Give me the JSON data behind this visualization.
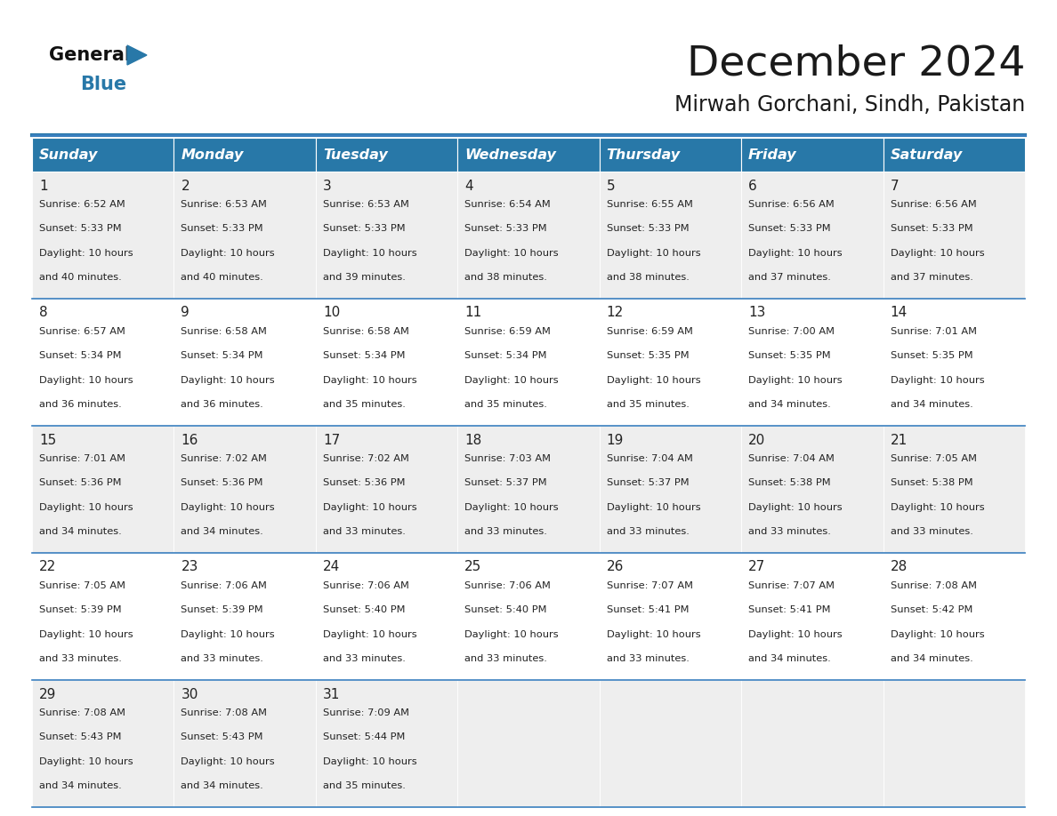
{
  "title": "December 2024",
  "subtitle": "Mirwah Gorchani, Sindh, Pakistan",
  "days_of_week": [
    "Sunday",
    "Monday",
    "Tuesday",
    "Wednesday",
    "Thursday",
    "Friday",
    "Saturday"
  ],
  "header_bg": "#2878a8",
  "header_text_color": "#FFFFFF",
  "row_bg_odd": "#EEEEEE",
  "row_bg_even": "#FFFFFF",
  "cell_border_color": "#3a7fbf",
  "text_color": "#222222",
  "logo_blue_color": "#2878a8",
  "weeks": [
    [
      {
        "day": 1,
        "sunrise": "6:52 AM",
        "sunset": "5:33 PM",
        "daylight": "10 hours and 40 minutes."
      },
      {
        "day": 2,
        "sunrise": "6:53 AM",
        "sunset": "5:33 PM",
        "daylight": "10 hours and 40 minutes."
      },
      {
        "day": 3,
        "sunrise": "6:53 AM",
        "sunset": "5:33 PM",
        "daylight": "10 hours and 39 minutes."
      },
      {
        "day": 4,
        "sunrise": "6:54 AM",
        "sunset": "5:33 PM",
        "daylight": "10 hours and 38 minutes."
      },
      {
        "day": 5,
        "sunrise": "6:55 AM",
        "sunset": "5:33 PM",
        "daylight": "10 hours and 38 minutes."
      },
      {
        "day": 6,
        "sunrise": "6:56 AM",
        "sunset": "5:33 PM",
        "daylight": "10 hours and 37 minutes."
      },
      {
        "day": 7,
        "sunrise": "6:56 AM",
        "sunset": "5:33 PM",
        "daylight": "10 hours and 37 minutes."
      }
    ],
    [
      {
        "day": 8,
        "sunrise": "6:57 AM",
        "sunset": "5:34 PM",
        "daylight": "10 hours and 36 minutes."
      },
      {
        "day": 9,
        "sunrise": "6:58 AM",
        "sunset": "5:34 PM",
        "daylight": "10 hours and 36 minutes."
      },
      {
        "day": 10,
        "sunrise": "6:58 AM",
        "sunset": "5:34 PM",
        "daylight": "10 hours and 35 minutes."
      },
      {
        "day": 11,
        "sunrise": "6:59 AM",
        "sunset": "5:34 PM",
        "daylight": "10 hours and 35 minutes."
      },
      {
        "day": 12,
        "sunrise": "6:59 AM",
        "sunset": "5:35 PM",
        "daylight": "10 hours and 35 minutes."
      },
      {
        "day": 13,
        "sunrise": "7:00 AM",
        "sunset": "5:35 PM",
        "daylight": "10 hours and 34 minutes."
      },
      {
        "day": 14,
        "sunrise": "7:01 AM",
        "sunset": "5:35 PM",
        "daylight": "10 hours and 34 minutes."
      }
    ],
    [
      {
        "day": 15,
        "sunrise": "7:01 AM",
        "sunset": "5:36 PM",
        "daylight": "10 hours and 34 minutes."
      },
      {
        "day": 16,
        "sunrise": "7:02 AM",
        "sunset": "5:36 PM",
        "daylight": "10 hours and 34 minutes."
      },
      {
        "day": 17,
        "sunrise": "7:02 AM",
        "sunset": "5:36 PM",
        "daylight": "10 hours and 33 minutes."
      },
      {
        "day": 18,
        "sunrise": "7:03 AM",
        "sunset": "5:37 PM",
        "daylight": "10 hours and 33 minutes."
      },
      {
        "day": 19,
        "sunrise": "7:04 AM",
        "sunset": "5:37 PM",
        "daylight": "10 hours and 33 minutes."
      },
      {
        "day": 20,
        "sunrise": "7:04 AM",
        "sunset": "5:38 PM",
        "daylight": "10 hours and 33 minutes."
      },
      {
        "day": 21,
        "sunrise": "7:05 AM",
        "sunset": "5:38 PM",
        "daylight": "10 hours and 33 minutes."
      }
    ],
    [
      {
        "day": 22,
        "sunrise": "7:05 AM",
        "sunset": "5:39 PM",
        "daylight": "10 hours and 33 minutes."
      },
      {
        "day": 23,
        "sunrise": "7:06 AM",
        "sunset": "5:39 PM",
        "daylight": "10 hours and 33 minutes."
      },
      {
        "day": 24,
        "sunrise": "7:06 AM",
        "sunset": "5:40 PM",
        "daylight": "10 hours and 33 minutes."
      },
      {
        "day": 25,
        "sunrise": "7:06 AM",
        "sunset": "5:40 PM",
        "daylight": "10 hours and 33 minutes."
      },
      {
        "day": 26,
        "sunrise": "7:07 AM",
        "sunset": "5:41 PM",
        "daylight": "10 hours and 33 minutes."
      },
      {
        "day": 27,
        "sunrise": "7:07 AM",
        "sunset": "5:41 PM",
        "daylight": "10 hours and 34 minutes."
      },
      {
        "day": 28,
        "sunrise": "7:08 AM",
        "sunset": "5:42 PM",
        "daylight": "10 hours and 34 minutes."
      }
    ],
    [
      {
        "day": 29,
        "sunrise": "7:08 AM",
        "sunset": "5:43 PM",
        "daylight": "10 hours and 34 minutes."
      },
      {
        "day": 30,
        "sunrise": "7:08 AM",
        "sunset": "5:43 PM",
        "daylight": "10 hours and 34 minutes."
      },
      {
        "day": 31,
        "sunrise": "7:09 AM",
        "sunset": "5:44 PM",
        "daylight": "10 hours and 35 minutes."
      },
      null,
      null,
      null,
      null
    ]
  ]
}
